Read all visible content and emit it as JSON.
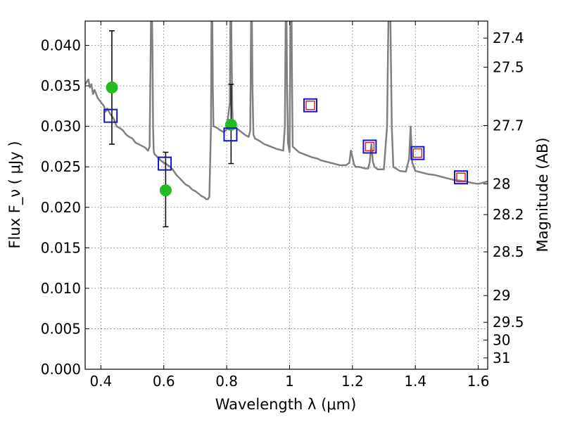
{
  "chart_data": {
    "type": "line",
    "title": "",
    "xlabel": "Wavelength  λ (μm)",
    "ylabel": "Flux  F_ν  ( μJy )",
    "ylabel_right": "Magnitude (AB)",
    "xlim": [
      0.35,
      1.63
    ],
    "ylim": [
      0.0,
      0.043
    ],
    "grid": true,
    "x_ticks": [
      0.4,
      0.6,
      0.8,
      1.0,
      1.2,
      1.4,
      1.6
    ],
    "x_tick_labels": [
      "0.4",
      "0.6",
      "0.8",
      "1",
      "1.2",
      "1.4",
      "1.6"
    ],
    "y_ticks": [
      0.0,
      0.005,
      0.01,
      0.015,
      0.02,
      0.025,
      0.03,
      0.035,
      0.04
    ],
    "y_tick_labels": [
      "0.000",
      "0.005",
      "0.010",
      "0.015",
      "0.020",
      "0.025",
      "0.030",
      "0.035",
      "0.040"
    ],
    "right_ticks": [
      {
        "flux": 0.0409,
        "label": "27.4"
      },
      {
        "flux": 0.0373,
        "label": "27.5"
      },
      {
        "flux": 0.0301,
        "label": "27.7"
      },
      {
        "flux": 0.0229,
        "label": "28"
      },
      {
        "flux": 0.0191,
        "label": "28.2"
      },
      {
        "flux": 0.0145,
        "label": "28.5"
      },
      {
        "flux": 0.0091,
        "label": "29"
      },
      {
        "flux": 0.0058,
        "label": "29.5"
      },
      {
        "flux": 0.0036,
        "label": "30"
      },
      {
        "flux": 0.0014,
        "label": "31"
      }
    ],
    "series": [
      {
        "kind": "spectrum",
        "color": "#808080",
        "x": [
          0.35,
          0.36,
          0.365,
          0.37,
          0.375,
          0.38,
          0.39,
          0.4,
          0.41,
          0.415,
          0.42,
          0.43,
          0.44,
          0.45,
          0.46,
          0.47,
          0.48,
          0.49,
          0.5,
          0.51,
          0.52,
          0.53,
          0.54,
          0.55,
          0.555,
          0.56,
          0.562,
          0.564,
          0.566,
          0.568,
          0.57,
          0.58,
          0.59,
          0.6,
          0.61,
          0.62,
          0.63,
          0.64,
          0.65,
          0.66,
          0.67,
          0.68,
          0.69,
          0.7,
          0.71,
          0.72,
          0.73,
          0.735,
          0.74,
          0.745,
          0.75,
          0.752,
          0.754,
          0.756,
          0.758,
          0.76,
          0.77,
          0.78,
          0.79,
          0.8,
          0.81,
          0.812,
          0.814,
          0.816,
          0.818,
          0.82,
          0.83,
          0.84,
          0.85,
          0.86,
          0.87,
          0.875,
          0.878,
          0.88,
          0.882,
          0.885,
          0.89,
          0.9,
          0.92,
          0.94,
          0.96,
          0.98,
          0.985,
          0.988,
          0.99,
          0.992,
          0.995,
          1.0,
          1.003,
          1.006,
          1.008,
          1.01,
          1.03,
          1.05,
          1.07,
          1.09,
          1.1,
          1.12,
          1.14,
          1.16,
          1.18,
          1.19,
          1.195,
          1.2,
          1.205,
          1.21,
          1.22,
          1.24,
          1.25,
          1.255,
          1.26,
          1.265,
          1.27,
          1.28,
          1.3,
          1.31,
          1.315,
          1.32,
          1.325,
          1.33,
          1.35,
          1.37,
          1.38,
          1.385,
          1.39,
          1.4,
          1.42,
          1.44,
          1.46,
          1.48,
          1.5,
          1.52,
          1.54,
          1.56,
          1.58,
          1.6,
          1.63
        ],
        "y": [
          0.0352,
          0.0358,
          0.0348,
          0.0352,
          0.034,
          0.0345,
          0.0335,
          0.033,
          0.0325,
          0.0318,
          0.0322,
          0.0315,
          0.031,
          0.03,
          0.0298,
          0.0295,
          0.029,
          0.0287,
          0.0285,
          0.028,
          0.0278,
          0.0276,
          0.0274,
          0.027,
          0.0275,
          0.045,
          0.045,
          0.04,
          0.03,
          0.027,
          0.0266,
          0.0262,
          0.0258,
          0.0255,
          0.0253,
          0.025,
          0.0246,
          0.024,
          0.0236,
          0.0232,
          0.0228,
          0.0226,
          0.0222,
          0.022,
          0.0217,
          0.0214,
          0.0212,
          0.021,
          0.021,
          0.0213,
          0.03,
          0.045,
          0.045,
          0.035,
          0.03,
          0.03,
          0.0298,
          0.0295,
          0.0293,
          0.0296,
          0.033,
          0.045,
          0.045,
          0.038,
          0.032,
          0.03,
          0.0298,
          0.0295,
          0.0292,
          0.0289,
          0.0287,
          0.0295,
          0.045,
          0.045,
          0.035,
          0.029,
          0.0285,
          0.0283,
          0.0278,
          0.0275,
          0.0272,
          0.027,
          0.03,
          0.045,
          0.045,
          0.035,
          0.028,
          0.0268,
          0.045,
          0.045,
          0.035,
          0.0275,
          0.0268,
          0.0265,
          0.0262,
          0.026,
          0.0258,
          0.0256,
          0.0254,
          0.0252,
          0.0252,
          0.0255,
          0.027,
          0.0262,
          0.0253,
          0.025,
          0.025,
          0.0248,
          0.0248,
          0.0256,
          0.0278,
          0.0256,
          0.025,
          0.0247,
          0.0247,
          0.03,
          0.045,
          0.045,
          0.03,
          0.025,
          0.0245,
          0.0244,
          0.026,
          0.03,
          0.0255,
          0.0245,
          0.0243,
          0.0241,
          0.024,
          0.0238,
          0.0236,
          0.0234,
          0.0233,
          0.0232,
          0.023,
          0.0229,
          0.0232
        ]
      },
      {
        "kind": "errorbar",
        "color": "#000000",
        "points": [
          {
            "x": 0.435,
            "low": 0.0278,
            "high": 0.0418
          },
          {
            "x": 0.606,
            "low": 0.0176,
            "high": 0.0268
          },
          {
            "x": 0.814,
            "low": 0.0254,
            "high": 0.0352
          }
        ]
      },
      {
        "kind": "observed",
        "color": "#22bb22",
        "x": [
          0.435,
          0.606,
          0.814
        ],
        "y": [
          0.0348,
          0.0221,
          0.0302
        ]
      },
      {
        "kind": "model-band-blue",
        "color": "#1414c8",
        "x": [
          0.431,
          0.603,
          0.812,
          1.066,
          1.255,
          1.407,
          1.545
        ],
        "y": [
          0.0313,
          0.0254,
          0.029,
          0.0326,
          0.0275,
          0.0267,
          0.0237
        ]
      },
      {
        "kind": "model-band-red",
        "color": "#dd2222",
        "x": [
          1.066,
          1.255,
          1.407,
          1.545
        ],
        "y": [
          0.0326,
          0.0275,
          0.0267,
          0.0237
        ]
      }
    ]
  }
}
